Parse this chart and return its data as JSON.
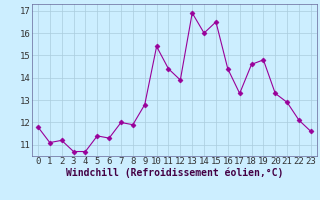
{
  "x": [
    0,
    1,
    2,
    3,
    4,
    5,
    6,
    7,
    8,
    9,
    10,
    11,
    12,
    13,
    14,
    15,
    16,
    17,
    18,
    19,
    20,
    21,
    22,
    23
  ],
  "y": [
    11.8,
    11.1,
    11.2,
    10.7,
    10.7,
    11.4,
    11.3,
    12.0,
    11.9,
    12.8,
    15.4,
    14.4,
    13.9,
    16.9,
    16.0,
    16.5,
    14.4,
    13.3,
    14.6,
    14.8,
    13.3,
    12.9,
    12.1,
    11.6
  ],
  "line_color": "#990099",
  "marker": "D",
  "marker_size": 2.5,
  "bg_color": "#cceeff",
  "grid_color": "#aaccdd",
  "xlabel": "Windchill (Refroidissement éolien,°C)",
  "xlabel_fontsize": 7,
  "tick_fontsize": 6.5,
  "ylim": [
    10.5,
    17.3
  ],
  "yticks": [
    11,
    12,
    13,
    14,
    15,
    16,
    17
  ],
  "xlim": [
    -0.5,
    23.5
  ],
  "xticks": [
    0,
    1,
    2,
    3,
    4,
    5,
    6,
    7,
    8,
    9,
    10,
    11,
    12,
    13,
    14,
    15,
    16,
    17,
    18,
    19,
    20,
    21,
    22,
    23
  ],
  "spine_color": "#666699",
  "xlabel_color": "#440044"
}
